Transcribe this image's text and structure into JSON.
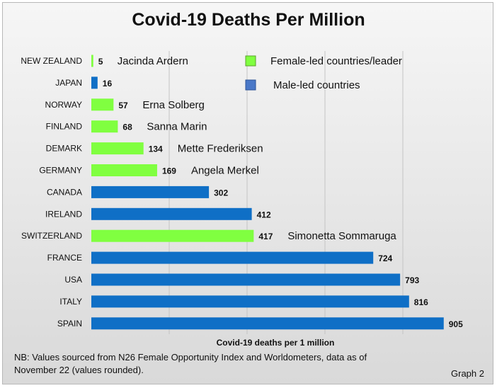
{
  "chart_data": {
    "type": "bar",
    "orientation": "horizontal",
    "title": "Covid-19 Deaths Per Million",
    "xlabel": "Covid-19 deaths per 1 million",
    "ylabel": "",
    "xlim": [
      0,
      1000
    ],
    "grid": true,
    "legend_position": "top-right",
    "categories": [
      "NEW ZEALAND",
      "JAPAN",
      "NORWAY",
      "FINLAND",
      "DEMARK",
      "GERMANY",
      "CANADA",
      "IRELAND",
      "SWITZERLAND",
      "FRANCE",
      "USA",
      "ITALY",
      "SPAIN"
    ],
    "values": [
      5,
      16,
      57,
      68,
      134,
      169,
      302,
      412,
      417,
      724,
      793,
      816,
      905
    ],
    "group": [
      "female",
      "male",
      "female",
      "female",
      "female",
      "female",
      "male",
      "male",
      "female",
      "male",
      "male",
      "male",
      "male"
    ],
    "leaders": [
      "Jacinda Ardern",
      "",
      "Erna Solberg",
      "Sanna Marin",
      "Mette Frederiksen",
      "Angela Merkel",
      "",
      "",
      "Simonetta Sommaruga",
      "",
      "",
      "",
      ""
    ],
    "series": [
      {
        "name": "Female-led countries/leader",
        "key": "female",
        "color": "#80ff40"
      },
      {
        "name": "Male-led countries",
        "key": "male",
        "color": "#0f6fc6"
      }
    ]
  },
  "legend_colors": {
    "female_border": "#5aa02c",
    "male_border": "#2e5597",
    "male_swatch": "#4a78c8"
  },
  "note": "NB: Values sourced from N26 Female Opportunity Index and Worldometers, data as of November 22 (values rounded).",
  "graph_label": "Graph 2"
}
